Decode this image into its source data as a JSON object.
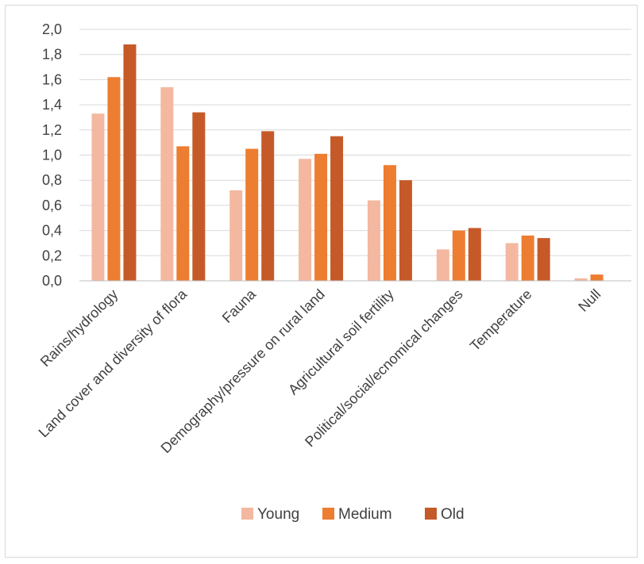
{
  "chart_data": {
    "type": "bar",
    "title": "",
    "xlabel": "",
    "ylabel": "",
    "ylim": [
      0,
      2.0
    ],
    "yticks": [
      "0,0",
      "0,2",
      "0,4",
      "0,6",
      "0,8",
      "1,0",
      "1,2",
      "1,4",
      "1,6",
      "1,8",
      "2,0"
    ],
    "ytick_values": [
      0,
      0.2,
      0.4,
      0.6,
      0.8,
      1.0,
      1.2,
      1.4,
      1.6,
      1.8,
      2.0
    ],
    "grid": true,
    "legend_position": "bottom",
    "categories": [
      "Rains/hydrology",
      "Land cover and diversity of flora",
      "Fauna",
      "Demography/pressure on rural land",
      "Agricultural soil fertility",
      "Political/social/ecnomical changes",
      "Temperature",
      "Null"
    ],
    "series": [
      {
        "name": "Young",
        "color": "#f4b8a0",
        "values": [
          1.33,
          1.54,
          0.72,
          0.97,
          0.64,
          0.25,
          0.3,
          0.02
        ]
      },
      {
        "name": "Medium",
        "color": "#ed7d31",
        "values": [
          1.62,
          1.07,
          1.05,
          1.01,
          0.92,
          0.4,
          0.36,
          0.05
        ]
      },
      {
        "name": "Old",
        "color": "#c55a28",
        "values": [
          1.88,
          1.34,
          1.19,
          1.15,
          0.8,
          0.42,
          0.34,
          0.0
        ]
      }
    ]
  },
  "colors": {
    "grid": "#d9d9d9",
    "axis": "#bfbfbf",
    "text": "#404040"
  }
}
